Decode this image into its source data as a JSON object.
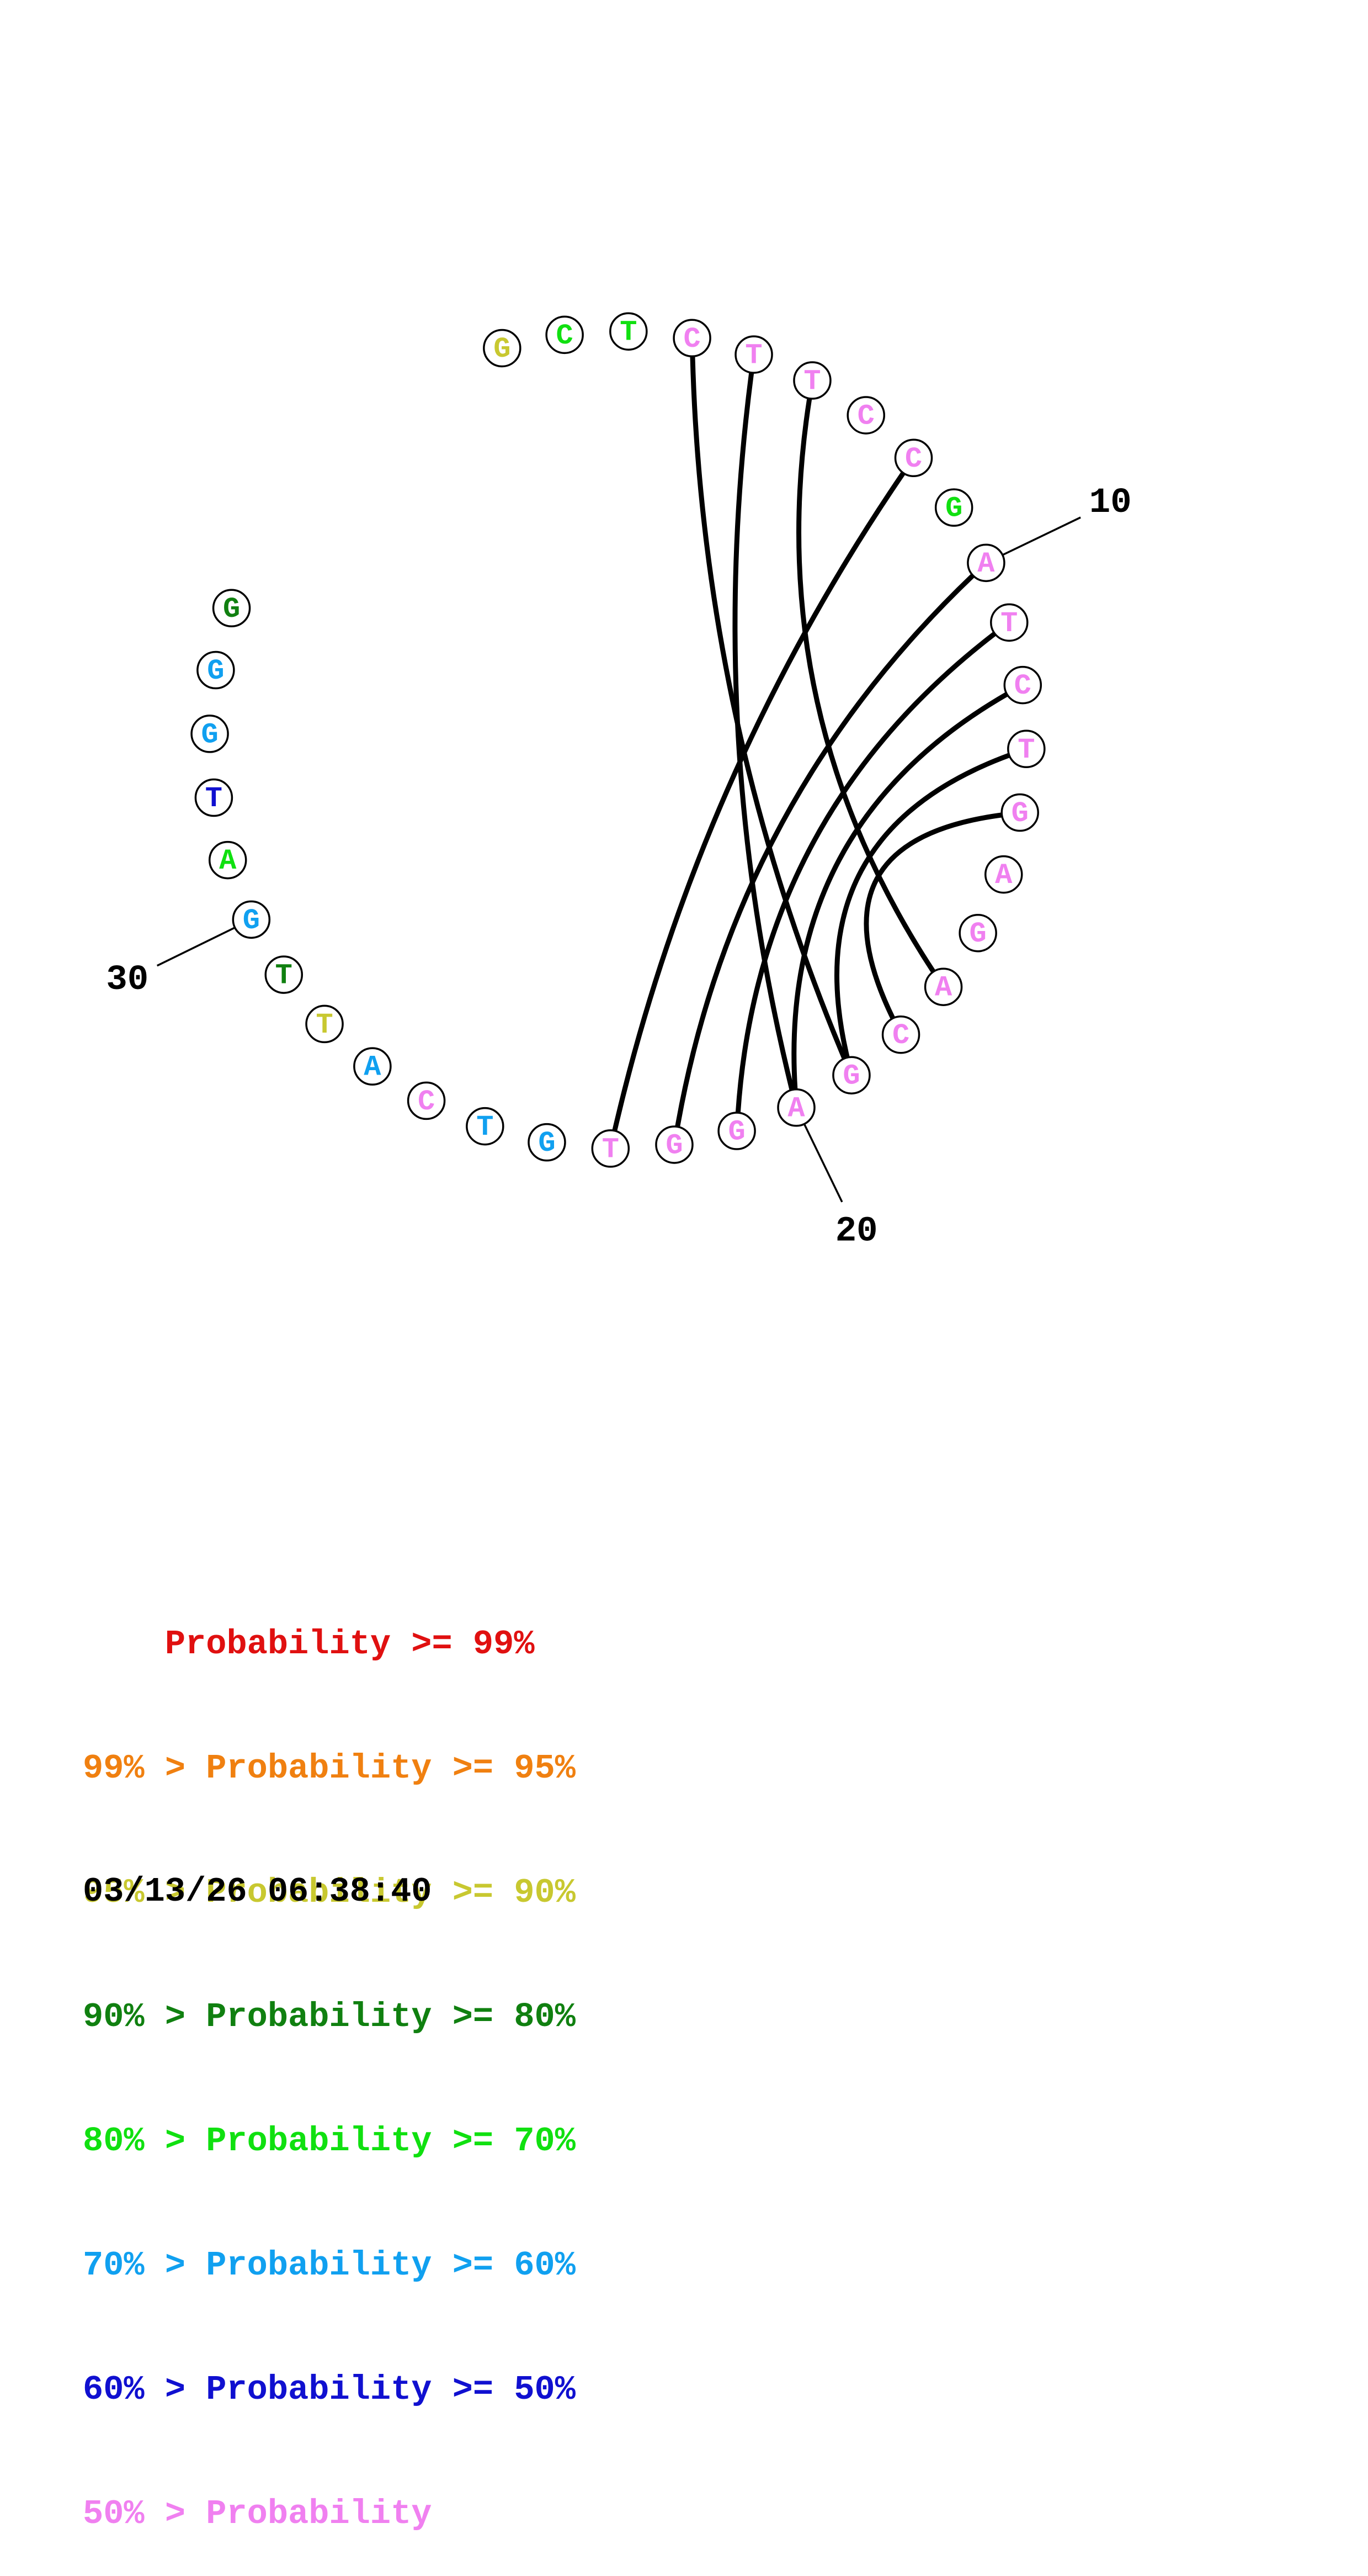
{
  "structure": {
    "sequence": [
      "G",
      "C",
      "T",
      "C",
      "T",
      "T",
      "C",
      "C",
      "G",
      "A",
      "T",
      "C",
      "T",
      "G",
      "A",
      "G",
      "A",
      "C",
      "G",
      "A",
      "G",
      "G",
      "T",
      "G",
      "T",
      "C",
      "A",
      "T",
      "T",
      "G",
      "A",
      "T",
      "G",
      "G",
      "G"
    ],
    "probability_level": [
      2,
      4,
      4,
      7,
      7,
      7,
      7,
      7,
      4,
      7,
      7,
      7,
      7,
      7,
      7,
      7,
      7,
      7,
      7,
      7,
      7,
      7,
      7,
      5,
      5,
      7,
      5,
      2,
      3,
      5,
      4,
      6,
      5,
      5,
      3
    ],
    "pairs": [
      [
        4,
        19
      ],
      [
        5,
        20
      ],
      [
        6,
        17
      ],
      [
        8,
        23
      ],
      [
        10,
        22
      ],
      [
        11,
        21
      ],
      [
        12,
        20
      ],
      [
        13,
        19
      ],
      [
        14,
        18
      ]
    ],
    "index_labels": [
      "10",
      "20",
      "30"
    ]
  },
  "colors": {
    "levels": [
      "#e01010",
      "#f08010",
      "#c8c830",
      "#108010",
      "#10e010",
      "#10a0f0",
      "#1010d0",
      "#f080f0"
    ],
    "outline": "#000000",
    "pair_line": "#000000"
  },
  "legend": {
    "lines": [
      "    Probability >= 99%",
      "99% > Probability >= 95%",
      "95% > Probability >= 90%",
      "90% > Probability >= 80%",
      "80% > Probability >= 70%",
      "70% > Probability >= 60%",
      "60% > Probability >= 50%",
      "50% > Probability"
    ]
  },
  "timestamp": "03/13/26 06:38:40"
}
